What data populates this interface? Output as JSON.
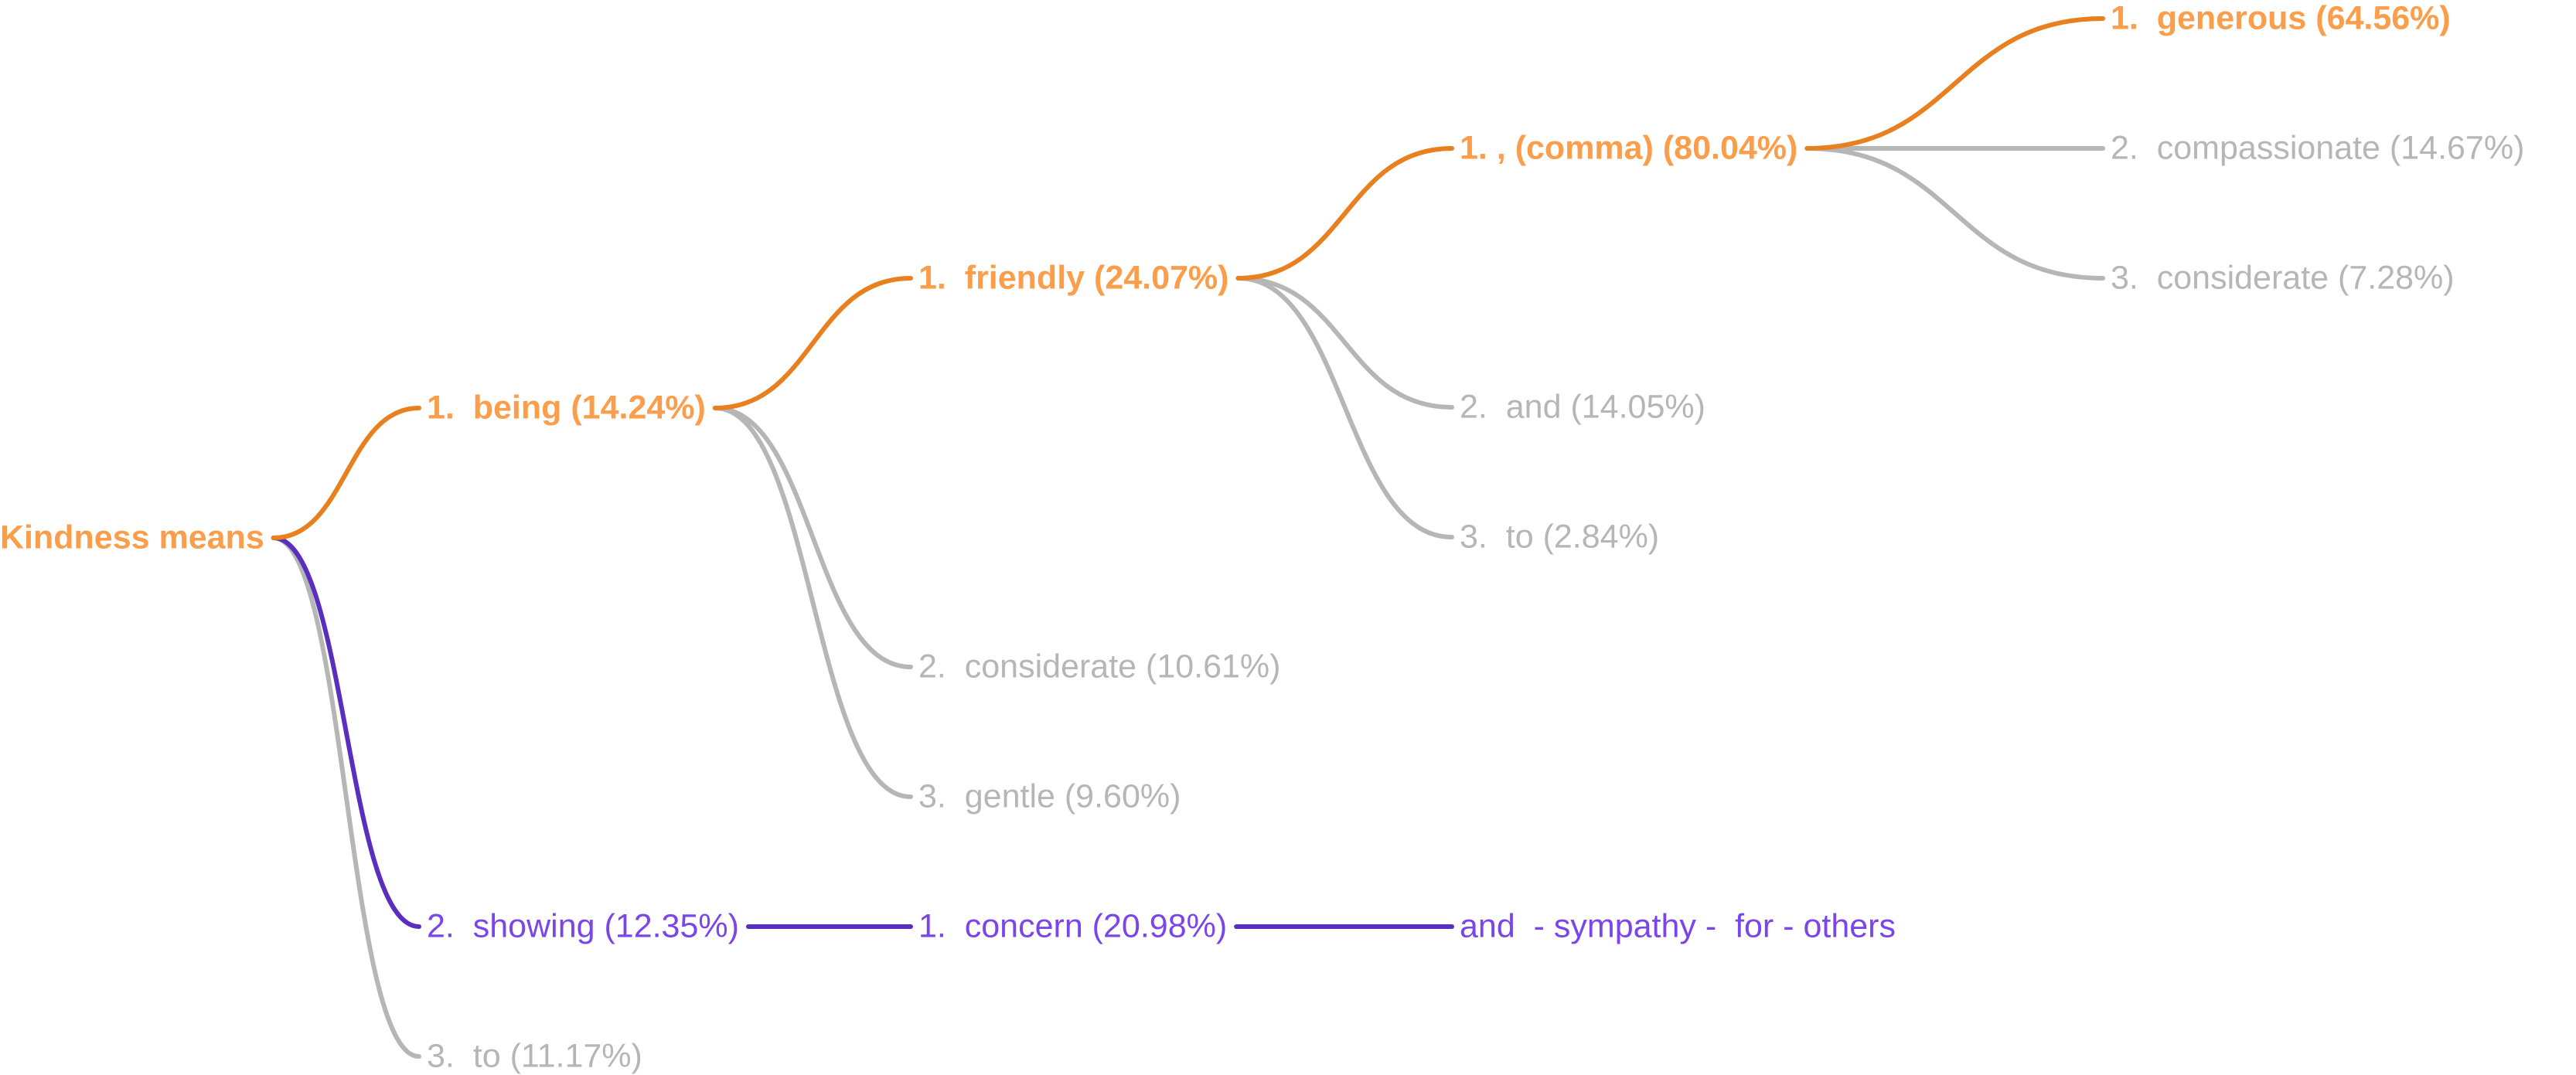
{
  "colors": {
    "selected": "#e8801f",
    "selected_text": "#fb9e4b",
    "alternate": "#5a2fc0",
    "alternate_text": "#7a45ea",
    "unselected": "#b6b6b6"
  },
  "nodes": [
    {
      "id": "root",
      "text": "Kindness means",
      "style": "orange"
    },
    {
      "id": "being",
      "text": "1.  being (14.24%)",
      "style": "orange"
    },
    {
      "id": "showing",
      "text": "2.  showing (12.35%)",
      "style": "purple"
    },
    {
      "id": "to_root",
      "text": "3.  to (11.17%)",
      "style": "gray"
    },
    {
      "id": "friendly",
      "text": "1.  friendly (24.07%)",
      "style": "orange"
    },
    {
      "id": "considerate_b",
      "text": "2.  considerate (10.61%)",
      "style": "gray"
    },
    {
      "id": "gentle",
      "text": "3.  gentle (9.60%)",
      "style": "gray"
    },
    {
      "id": "comma",
      "text": "1. , (comma) (80.04%)",
      "style": "orange"
    },
    {
      "id": "and",
      "text": "2.  and (14.05%)",
      "style": "gray"
    },
    {
      "id": "to_f",
      "text": "3.  to (2.84%)",
      "style": "gray"
    },
    {
      "id": "generous",
      "text": "1.  generous (64.56%)",
      "style": "orange"
    },
    {
      "id": "compassionate",
      "text": "2.  compassionate (14.67%)",
      "style": "gray"
    },
    {
      "id": "considerate_c",
      "text": "3.  considerate (7.28%)",
      "style": "gray"
    },
    {
      "id": "concern",
      "text": "1.  concern (20.98%)",
      "style": "purple"
    },
    {
      "id": "continuation",
      "text": "and  - sympathy -  for - others",
      "style": "purple"
    }
  ],
  "links": [
    {
      "from": "root",
      "to": "being",
      "style": "selected"
    },
    {
      "from": "root",
      "to": "showing",
      "style": "alternate"
    },
    {
      "from": "root",
      "to": "to_root",
      "style": "unselected"
    },
    {
      "from": "being",
      "to": "friendly",
      "style": "selected"
    },
    {
      "from": "being",
      "to": "considerate_b",
      "style": "unselected"
    },
    {
      "from": "being",
      "to": "gentle",
      "style": "unselected"
    },
    {
      "from": "friendly",
      "to": "comma",
      "style": "selected"
    },
    {
      "from": "friendly",
      "to": "and",
      "style": "unselected"
    },
    {
      "from": "friendly",
      "to": "to_f",
      "style": "unselected"
    },
    {
      "from": "comma",
      "to": "generous",
      "style": "selected"
    },
    {
      "from": "comma",
      "to": "compassionate",
      "style": "unselected"
    },
    {
      "from": "comma",
      "to": "considerate_c",
      "style": "unselected"
    },
    {
      "from": "showing",
      "to": "concern",
      "style": "alternate"
    },
    {
      "from": "concern",
      "to": "continuation",
      "style": "alternate"
    }
  ]
}
